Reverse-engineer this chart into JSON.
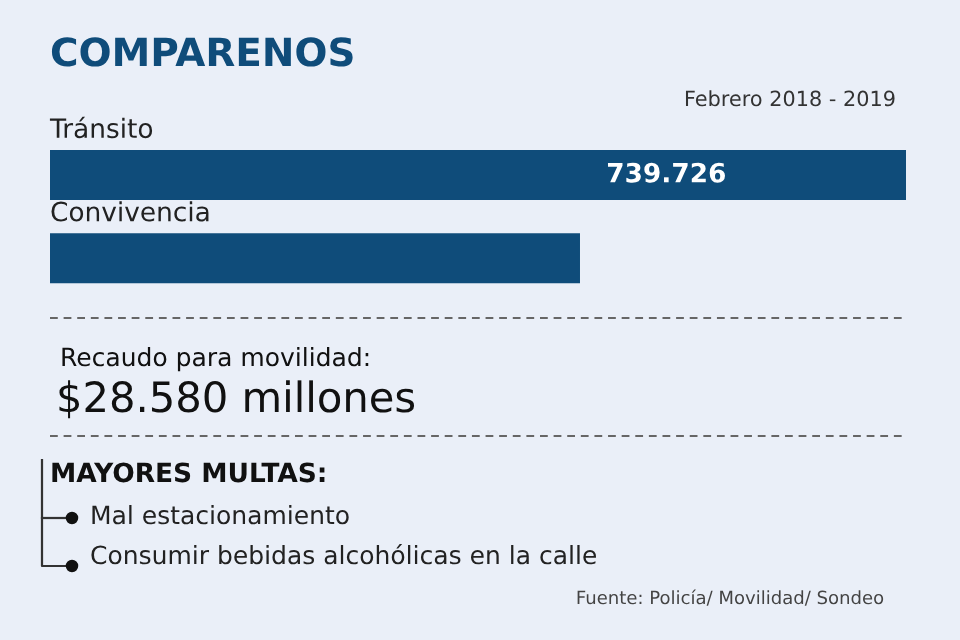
{
  "chart_data": {
    "type": "bar",
    "orientation": "horizontal",
    "title": "COMPARENOS",
    "subtitle": "Febrero 2018 - 2019",
    "categories": [
      "Tránsito",
      "Convivencia"
    ],
    "values": [
      739726,
      458000
    ],
    "value_labels": [
      "739.726",
      null
    ],
    "color": "#0f4c7a",
    "annotations": [
      "Recaudo para movilidad:",
      "$28.580 millones",
      "MAYORES MULTAS:",
      "Mal estacionamiento",
      "Consumir bebidas alcohólicas en la calle",
      "Fuente: Policía/ Movilidad/ Sondeo"
    ]
  }
}
